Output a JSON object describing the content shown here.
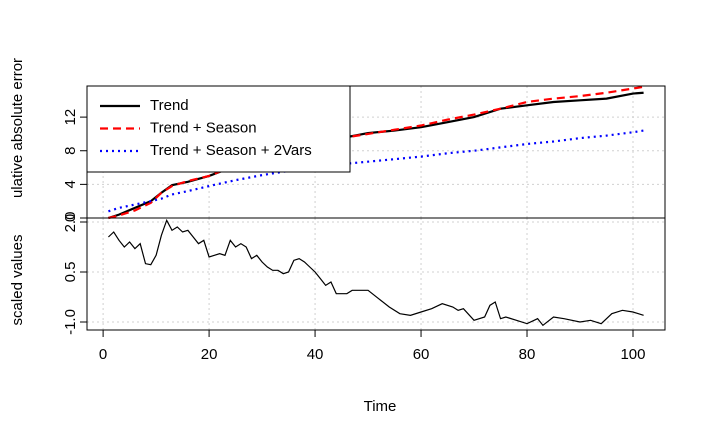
{
  "chart_data": [
    {
      "type": "line",
      "ylabel": "ulative absolute error",
      "legend": "topleft",
      "grid": true,
      "xlim": [
        -3.04,
        106.04
      ],
      "ylim": [
        0,
        15.7
      ],
      "yticks": [
        0,
        4,
        8,
        12
      ],
      "series": [
        {
          "name": "Trend",
          "color": "#000000",
          "dash": "solid",
          "x": [
            1,
            3,
            6,
            9,
            11,
            13,
            16,
            20,
            25,
            30,
            35,
            40,
            45,
            50,
            55,
            60,
            65,
            70,
            75,
            80,
            85,
            90,
            95,
            100,
            102
          ],
          "values": [
            0,
            0.4,
            1.2,
            2.0,
            3.0,
            3.9,
            4.3,
            5.0,
            6.2,
            7.2,
            8.0,
            8.8,
            9.5,
            10.1,
            10.4,
            10.8,
            11.4,
            12.0,
            13.0,
            13.4,
            13.8,
            14.0,
            14.2,
            14.8,
            14.9
          ]
        },
        {
          "name": "Trend + Season",
          "color": "#ff0000",
          "dash": "dashed",
          "x": [
            1,
            3,
            6,
            9,
            11,
            13,
            16,
            20,
            25,
            30,
            35,
            40,
            45,
            50,
            55,
            60,
            65,
            70,
            75,
            80,
            85,
            90,
            95,
            100,
            102
          ],
          "values": [
            0,
            0.3,
            0.9,
            1.8,
            3.0,
            3.8,
            4.4,
            5.0,
            6.3,
            7.3,
            8.1,
            8.9,
            9.5,
            10.0,
            10.5,
            11.0,
            11.7,
            12.3,
            13.0,
            13.8,
            14.2,
            14.5,
            14.9,
            15.4,
            15.6
          ]
        },
        {
          "name": "Trend + Season + 2Vars",
          "color": "#0000ff",
          "dash": "dotted",
          "x": [
            1,
            3,
            6,
            9,
            11,
            13,
            16,
            20,
            25,
            30,
            35,
            40,
            45,
            50,
            55,
            60,
            65,
            70,
            75,
            80,
            85,
            90,
            95,
            100,
            102
          ],
          "values": [
            0.8,
            1.2,
            1.6,
            2.0,
            2.3,
            2.8,
            3.2,
            3.8,
            4.5,
            5.1,
            5.6,
            6.0,
            6.4,
            6.7,
            7.0,
            7.3,
            7.7,
            8.0,
            8.4,
            8.8,
            9.1,
            9.5,
            9.8,
            10.2,
            10.4
          ]
        }
      ]
    },
    {
      "type": "line",
      "ylabel": "scaled values",
      "xlabel": "Time",
      "grid": true,
      "xlim": [
        -3.04,
        106.04
      ],
      "ylim": [
        -1.24,
        2.12
      ],
      "xticks": [
        0,
        20,
        40,
        60,
        80,
        100
      ],
      "yticks": [
        {
          "value": -1.0,
          "label": "-1.0"
        },
        {
          "value": 0.5,
          "label": "0.5"
        },
        {
          "value": 2.0,
          "label": "2.0"
        }
      ],
      "series": [
        {
          "color": "#000000",
          "x": [
            1,
            2,
            3,
            4,
            5,
            6,
            7,
            8,
            9,
            10,
            11,
            12,
            13,
            14,
            15,
            16,
            17,
            18,
            19,
            20,
            21,
            22,
            23,
            24,
            25,
            26,
            27,
            28,
            29,
            30,
            31,
            32,
            33,
            34,
            35,
            36,
            37,
            38,
            39,
            40,
            41,
            42,
            43,
            44,
            45,
            46,
            47,
            48,
            50,
            52,
            54,
            56,
            58,
            60,
            62,
            64,
            66,
            67,
            68,
            70,
            72,
            73,
            74,
            75,
            76,
            78,
            80,
            82,
            83,
            85,
            87,
            90,
            92,
            94,
            96,
            98,
            100,
            102
          ],
          "values": [
            1.55,
            1.7,
            1.45,
            1.25,
            1.4,
            1.2,
            1.35,
            0.75,
            0.72,
            1.0,
            1.6,
            2.05,
            1.75,
            1.85,
            1.7,
            1.75,
            1.55,
            1.35,
            1.45,
            0.95,
            1.0,
            1.05,
            1.0,
            1.45,
            1.25,
            1.35,
            1.25,
            0.9,
            1.0,
            0.8,
            0.65,
            0.55,
            0.55,
            0.45,
            0.5,
            0.85,
            0.9,
            0.8,
            0.65,
            0.5,
            0.3,
            0.1,
            0.2,
            -0.15,
            -0.15,
            -0.15,
            -0.05,
            -0.05,
            -0.05,
            -0.3,
            -0.55,
            -0.75,
            -0.8,
            -0.7,
            -0.6,
            -0.45,
            -0.55,
            -0.65,
            -0.6,
            -0.95,
            -0.85,
            -0.5,
            -0.4,
            -0.9,
            -0.85,
            -0.95,
            -1.05,
            -0.9,
            -1.1,
            -0.85,
            -0.9,
            -1.0,
            -0.95,
            -1.05,
            -0.75,
            -0.65,
            -0.7,
            -0.8
          ]
        }
      ]
    }
  ]
}
